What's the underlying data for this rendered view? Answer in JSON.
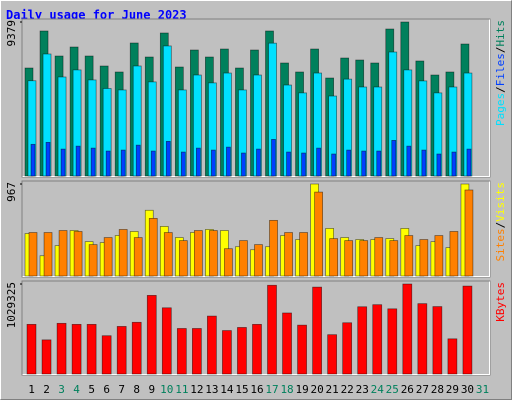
{
  "chart_data": [
    {
      "type": "bar",
      "title": "Daily usage for June 2023",
      "ylim": [
        0,
        9379
      ],
      "yticks": [
        9379
      ],
      "legend_separator": "/",
      "series": [
        {
          "name": "Hits",
          "color": "#00805c",
          "values": [
            6577,
            8831,
            7308,
            7856,
            7308,
            6699,
            6334,
            8100,
            7247,
            8709,
            6638,
            7673,
            7247,
            7734,
            6577,
            7673,
            8831,
            6882,
            6334,
            7734,
            5968,
            7186,
            7064,
            6882,
            8952,
            9379,
            7004,
            6151,
            6334,
            8039,
            null
          ]
        },
        {
          "name": "Files",
          "color": "#0040ff",
          "values": [
            1930,
            2050,
            1640,
            1820,
            1700,
            1520,
            1580,
            1880,
            1520,
            2110,
            1460,
            1700,
            1580,
            1760,
            1400,
            1640,
            2230,
            1460,
            1400,
            1700,
            1340,
            1580,
            1520,
            1520,
            2170,
            1820,
            1580,
            1340,
            1460,
            1640,
            null
          ]
        },
        {
          "name": "Pages",
          "color": "#00e0ff",
          "values": [
            5800,
            7430,
            6030,
            6460,
            5850,
            5330,
            5240,
            6700,
            5730,
            7920,
            5240,
            6150,
            5670,
            6270,
            5240,
            6150,
            8090,
            5540,
            5060,
            6270,
            4870,
            5900,
            5420,
            5420,
            7550,
            6460,
            5790,
            5060,
            5420,
            6270,
            null
          ]
        }
      ]
    },
    {
      "type": "bar",
      "ylim": [
        0,
        967
      ],
      "yticks": [
        967
      ],
      "legend_separator": "/",
      "series": [
        {
          "name": "Visits",
          "color": "#ffff00",
          "values": [
            446,
            213,
            319,
            478,
            361,
            351,
            425,
            468,
            691,
            521,
            404,
            457,
            489,
            478,
            308,
            276,
            308,
            425,
            383,
            967,
            500,
            404,
            383,
            383,
            393,
            500,
            319,
            361,
            298,
            967,
            null
          ]
        },
        {
          "name": "Sites",
          "color": "#ff8000",
          "values": [
            457,
            457,
            478,
            468,
            330,
            404,
            489,
            404,
            606,
            457,
            372,
            478,
            478,
            287,
            372,
            330,
            585,
            457,
            457,
            882,
            393,
            372,
            372,
            404,
            372,
            425,
            383,
            425,
            468,
            904,
            null
          ]
        }
      ]
    },
    {
      "type": "bar",
      "ylim": [
        0,
        1029325
      ],
      "yticks": [
        1029325
      ],
      "categories": [
        "1",
        "2",
        "3",
        "4",
        "5",
        "6",
        "7",
        "8",
        "9",
        "10",
        "11",
        "12",
        "13",
        "14",
        "15",
        "16",
        "17",
        "18",
        "19",
        "20",
        "21",
        "22",
        "23",
        "24",
        "25",
        "26",
        "27",
        "28",
        "29",
        "30",
        "31"
      ],
      "category_colors": [
        "#000000",
        "#000000",
        "#00805c",
        "#00805c",
        "#000000",
        "#000000",
        "#000000",
        "#000000",
        "#000000",
        "#00805c",
        "#00805c",
        "#000000",
        "#000000",
        "#000000",
        "#000000",
        "#000000",
        "#00805c",
        "#00805c",
        "#000000",
        "#000000",
        "#000000",
        "#000000",
        "#000000",
        "#00805c",
        "#00805c",
        "#000000",
        "#000000",
        "#000000",
        "#000000",
        "#000000",
        "#00805c"
      ],
      "series": [
        {
          "name": "KBytes",
          "color": "#ff0000",
          "values": [
            567900,
            390400,
            579700,
            567900,
            567900,
            437700,
            544200,
            591500,
            899200,
            757200,
            520600,
            520600,
            662500,
            496900,
            532400,
            567900,
            1015000,
            698000,
            559000,
            993800,
            449600,
            586000,
            769000,
            792700,
            745400,
            1029325,
            804500,
            771000,
            402300,
            1005600,
            null
          ]
        }
      ]
    }
  ]
}
